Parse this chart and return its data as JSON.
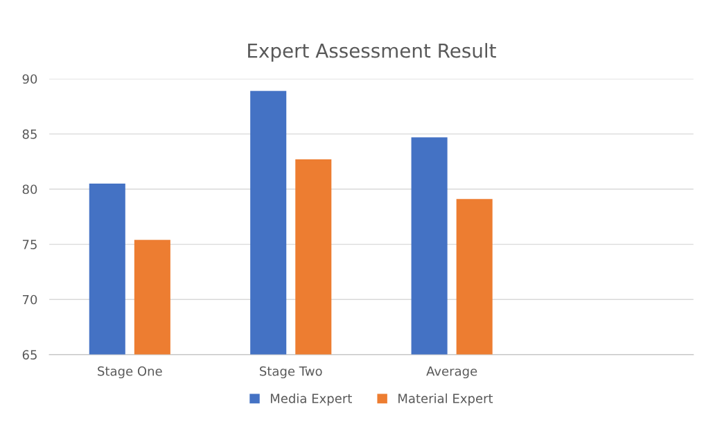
{
  "chart_data": {
    "type": "bar",
    "title": "Expert Assessment Result",
    "categories": [
      "Stage One",
      "Stage Two",
      "Average",
      null
    ],
    "series": [
      {
        "name": "Media Expert",
        "color": "#4472c4",
        "values": [
          80.5,
          88.9,
          84.7,
          null
        ]
      },
      {
        "name": "Material Expert",
        "color": "#ed7d31",
        "values": [
          75.4,
          82.7,
          79.1,
          null
        ]
      }
    ],
    "ylim": [
      65,
      90
    ],
    "yticks": [
      65,
      70,
      75,
      80,
      85,
      90
    ],
    "grid": "y",
    "legend": "bottom"
  }
}
